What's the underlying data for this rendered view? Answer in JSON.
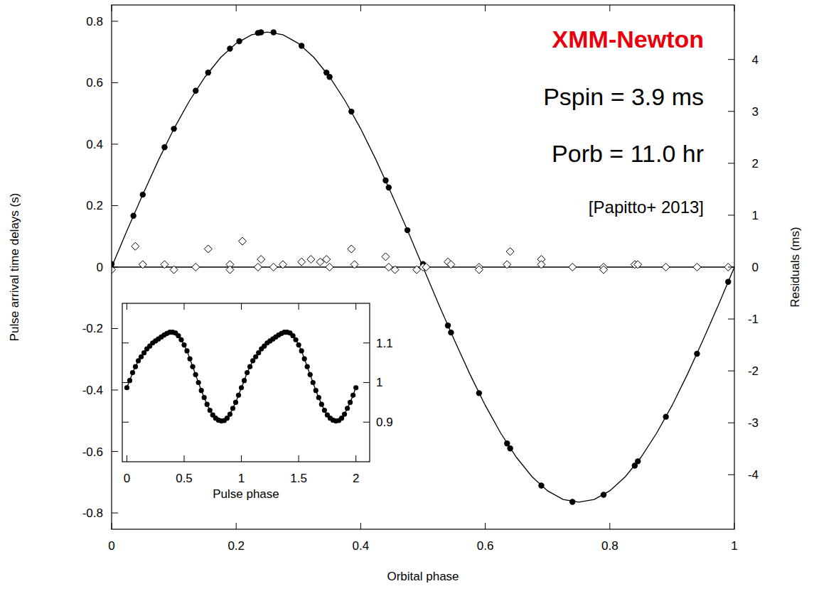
{
  "chart_data": [
    {
      "type": "scatter",
      "xlabel": "Orbital phase",
      "ylabel": "Pulse arrival time delays (s)",
      "y2label": "Residuals (ms)",
      "xlim": [
        0,
        1
      ],
      "xticks": [
        0,
        0.2,
        0.4,
        0.6,
        0.8,
        1
      ],
      "ylim": [
        -0.853,
        0.853
      ],
      "yticks": [
        -0.8,
        -0.6,
        -0.4,
        -0.2,
        0,
        0.2,
        0.4,
        0.6,
        0.8
      ],
      "y2lim": [
        -5.05,
        5.05
      ],
      "y2ticks": [
        -4,
        -3,
        -2,
        -1,
        0,
        1,
        2,
        3,
        4
      ],
      "annotations": [
        {
          "text": "XMM-Newton",
          "color": "#e8000b"
        },
        {
          "text": "Pspin = 3.9 ms",
          "color": "#000000"
        },
        {
          "text": "Porb = 11.0 hr",
          "color": "#000000"
        },
        {
          "text": "[Papitto+ 2013]",
          "color": "#000000"
        }
      ],
      "series": [
        {
          "type": "line",
          "color": "#000000",
          "line_style": "solid",
          "x": [
            0,
            0.025,
            0.05,
            0.075,
            0.1,
            0.125,
            0.15,
            0.175,
            0.2,
            0.225,
            0.25,
            0.275,
            0.3,
            0.325,
            0.35,
            0.375,
            0.4,
            0.425,
            0.45,
            0.475,
            0.5,
            0.525,
            0.55,
            0.575,
            0.6,
            0.625,
            0.65,
            0.675,
            0.7,
            0.725,
            0.75,
            0.775,
            0.8,
            0.825,
            0.85,
            0.875,
            0.9,
            0.925,
            0.95,
            0.975,
            1
          ],
          "values": [
            0,
            0.12,
            0.236,
            0.347,
            0.45,
            0.541,
            0.619,
            0.682,
            0.728,
            0.756,
            0.765,
            0.756,
            0.728,
            0.682,
            0.619,
            0.541,
            0.45,
            0.347,
            0.236,
            0.12,
            0,
            -0.12,
            -0.236,
            -0.347,
            -0.45,
            -0.541,
            -0.619,
            -0.682,
            -0.728,
            -0.756,
            -0.765,
            -0.756,
            -0.728,
            -0.682,
            -0.619,
            -0.541,
            -0.45,
            -0.347,
            -0.236,
            -0.12,
            0
          ]
        },
        {
          "type": "scatter",
          "color": "#000000",
          "marker": "circle",
          "x": [
            0.0,
            0.035,
            0.05,
            0.085,
            0.1,
            0.135,
            0.155,
            0.19,
            0.205,
            0.235,
            0.24,
            0.26,
            0.305,
            0.345,
            0.35,
            0.385,
            0.44,
            0.445,
            0.475,
            0.5,
            0.54,
            0.545,
            0.59,
            0.635,
            0.64,
            0.69,
            0.74,
            0.79,
            0.84,
            0.845,
            0.89,
            0.94,
            0.99
          ],
          "values": [
            0.01,
            0.167,
            0.236,
            0.39,
            0.45,
            0.574,
            0.633,
            0.711,
            0.735,
            0.762,
            0.764,
            0.764,
            0.72,
            0.633,
            0.619,
            0.506,
            0.282,
            0.259,
            0.12,
            0.01,
            -0.19,
            -0.213,
            -0.41,
            -0.574,
            -0.59,
            -0.711,
            -0.764,
            -0.741,
            -0.646,
            -0.632,
            -0.487,
            -0.282,
            -0.048
          ]
        },
        {
          "type": "scatter",
          "axis": "y2",
          "color": "#000000",
          "marker": "diamond",
          "x": [
            0.0,
            0.038,
            0.05,
            0.085,
            0.1,
            0.135,
            0.155,
            0.19,
            0.19,
            0.21,
            0.235,
            0.24,
            0.26,
            0.275,
            0.305,
            0.32,
            0.335,
            0.345,
            0.35,
            0.385,
            0.39,
            0.44,
            0.445,
            0.455,
            0.49,
            0.5,
            0.505,
            0.54,
            0.545,
            0.59,
            0.59,
            0.635,
            0.64,
            0.69,
            0.69,
            0.74,
            0.79,
            0.79,
            0.84,
            0.845,
            0.89,
            0.94,
            0.99
          ],
          "values": [
            -0.05,
            0.4,
            0.05,
            0.05,
            -0.05,
            0,
            0.35,
            0.05,
            -0.05,
            0.5,
            0,
            0.15,
            0,
            0.05,
            0.1,
            0.15,
            0.1,
            0.15,
            0,
            0.35,
            0.05,
            0.2,
            0,
            -0.05,
            -0.05,
            0,
            0,
            0.1,
            0.05,
            0,
            -0.05,
            0.05,
            0.3,
            0.15,
            0.05,
            0,
            0,
            -0.05,
            0.05,
            0.05,
            0,
            0,
            0
          ]
        }
      ]
    },
    {
      "type": "line",
      "xlabel": "Pulse phase",
      "xlim": [
        -0.04,
        2.12
      ],
      "xticks": [
        0,
        0.5,
        1,
        1.5,
        2
      ],
      "ylim": [
        0.8,
        1.2
      ],
      "yticks": [
        0.9,
        1,
        1.1
      ],
      "series": [
        {
          "type": "line",
          "color": "#000000",
          "marker": "circle",
          "line_style": "solid",
          "x": [
            0,
            0.025,
            0.05,
            0.075,
            0.1,
            0.125,
            0.15,
            0.175,
            0.2,
            0.225,
            0.25,
            0.275,
            0.3,
            0.325,
            0.35,
            0.375,
            0.4,
            0.425,
            0.45,
            0.475,
            0.5,
            0.525,
            0.55,
            0.575,
            0.6,
            0.625,
            0.65,
            0.675,
            0.7,
            0.725,
            0.75,
            0.775,
            0.8,
            0.825,
            0.85,
            0.875,
            0.9,
            0.925,
            0.95,
            0.975,
            1,
            1.025,
            1.05,
            1.075,
            1.1,
            1.125,
            1.15,
            1.175,
            1.2,
            1.225,
            1.25,
            1.275,
            1.3,
            1.325,
            1.35,
            1.375,
            1.4,
            1.425,
            1.45,
            1.475,
            1.5,
            1.525,
            1.55,
            1.575,
            1.6,
            1.625,
            1.65,
            1.675,
            1.7,
            1.725,
            1.75,
            1.775,
            1.8,
            1.825,
            1.85,
            1.875,
            1.9,
            1.925,
            1.95,
            1.975,
            2
          ],
          "values": [
            0.987,
            1.005,
            1.025,
            1.04,
            1.055,
            1.065,
            1.075,
            1.085,
            1.092,
            1.1,
            1.105,
            1.11,
            1.115,
            1.12,
            1.124,
            1.127,
            1.127,
            1.125,
            1.118,
            1.108,
            1.095,
            1.08,
            1.06,
            1.04,
            1.02,
            1.0,
            0.98,
            0.962,
            0.945,
            0.93,
            0.918,
            0.91,
            0.905,
            0.903,
            0.904,
            0.91,
            0.92,
            0.935,
            0.95,
            0.968,
            0.987,
            1.005,
            1.025,
            1.04,
            1.055,
            1.065,
            1.075,
            1.085,
            1.092,
            1.1,
            1.105,
            1.11,
            1.115,
            1.12,
            1.124,
            1.127,
            1.127,
            1.125,
            1.118,
            1.108,
            1.095,
            1.08,
            1.06,
            1.04,
            1.02,
            1.0,
            0.98,
            0.962,
            0.945,
            0.93,
            0.918,
            0.91,
            0.905,
            0.903,
            0.904,
            0.91,
            0.92,
            0.935,
            0.95,
            0.968,
            0.987
          ]
        }
      ]
    }
  ]
}
